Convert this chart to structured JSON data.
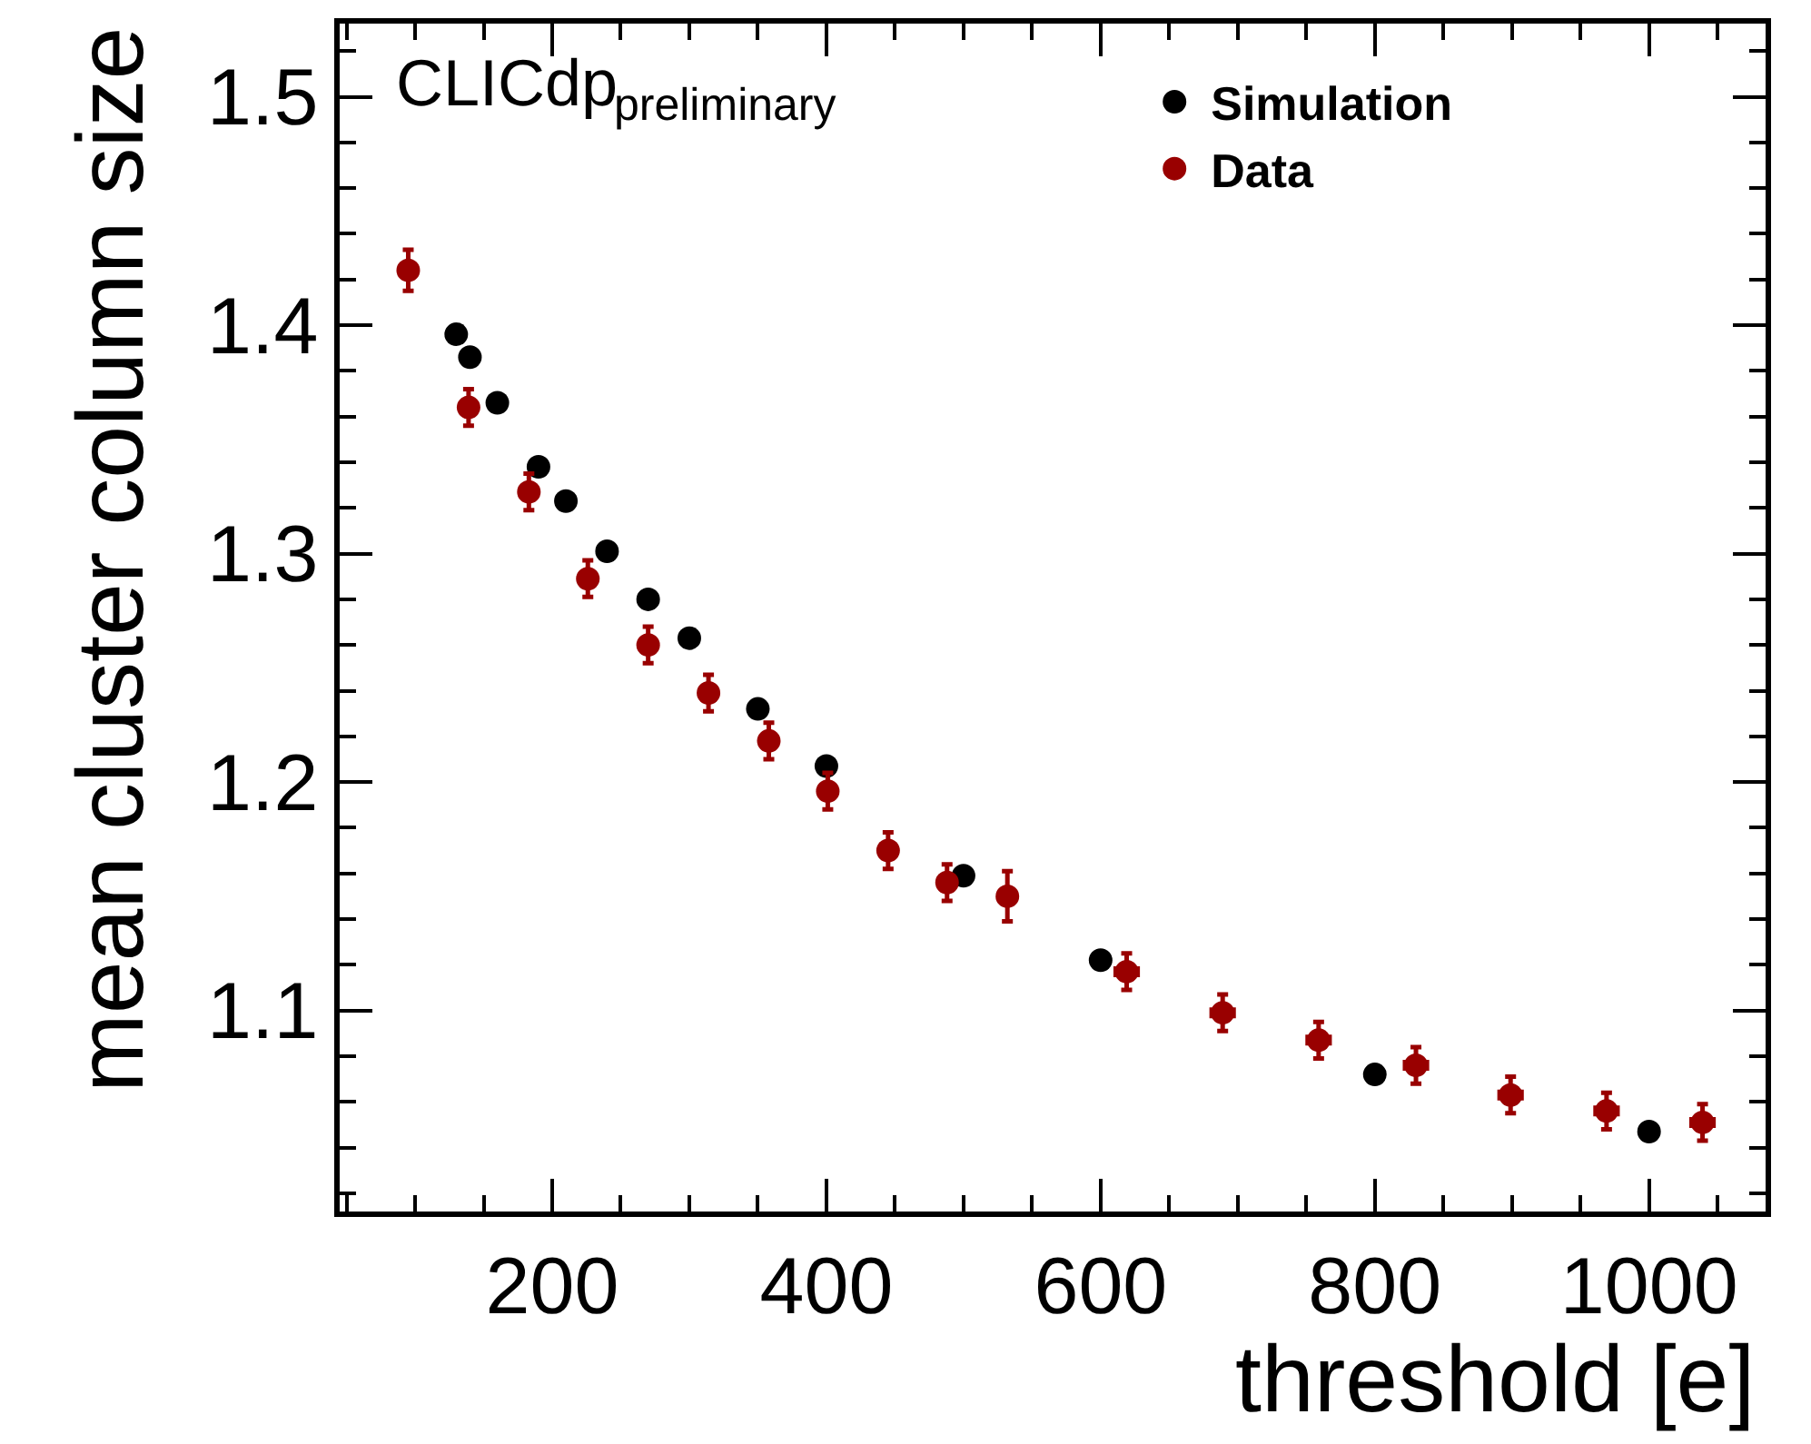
{
  "chart_data": {
    "type": "scatter",
    "xlabel": "threshold [e]",
    "ylabel": "mean cluster column size",
    "annotations": [
      "CLICdp",
      "preliminary"
    ],
    "xlim": [
      45,
      1085
    ],
    "ylim": [
      1.012,
      1.532
    ],
    "xticks": [
      200,
      400,
      600,
      800,
      1000
    ],
    "yticks": [
      1.1,
      1.2,
      1.3,
      1.4,
      1.5
    ],
    "legend": "top right",
    "marker": "circle",
    "series": [
      {
        "name": "Simulation",
        "color": "#000000",
        "x": [
          130,
          140,
          160,
          190,
          210,
          240,
          270,
          300,
          350,
          400,
          500,
          600,
          800,
          1000
        ],
        "values": [
          1.396,
          1.386,
          1.366,
          1.338,
          1.323,
          1.301,
          1.28,
          1.263,
          1.232,
          1.207,
          1.159,
          1.122,
          1.072,
          1.047
        ]
      },
      {
        "name": "Data",
        "color": "#990000",
        "x": [
          95,
          139,
          183,
          226,
          270,
          314,
          358,
          401,
          445,
          488,
          532,
          619,
          689,
          759,
          830,
          899,
          969,
          1039
        ],
        "values": [
          1.424,
          1.364,
          1.327,
          1.289,
          1.26,
          1.239,
          1.218,
          1.196,
          1.17,
          1.156,
          1.15,
          1.117,
          1.099,
          1.087,
          1.076,
          1.063,
          1.056,
          1.051
        ],
        "errors": [
          0.009,
          0.008,
          0.008,
          0.008,
          0.008,
          0.008,
          0.008,
          0.008,
          0.008,
          0.008,
          0.011,
          0.008,
          0.008,
          0.008,
          0.008,
          0.008,
          0.008,
          0.008
        ],
        "xerrors": [
          null,
          null,
          null,
          null,
          null,
          null,
          null,
          null,
          null,
          null,
          null,
          8,
          8,
          8,
          8,
          8,
          8,
          8
        ]
      }
    ]
  }
}
